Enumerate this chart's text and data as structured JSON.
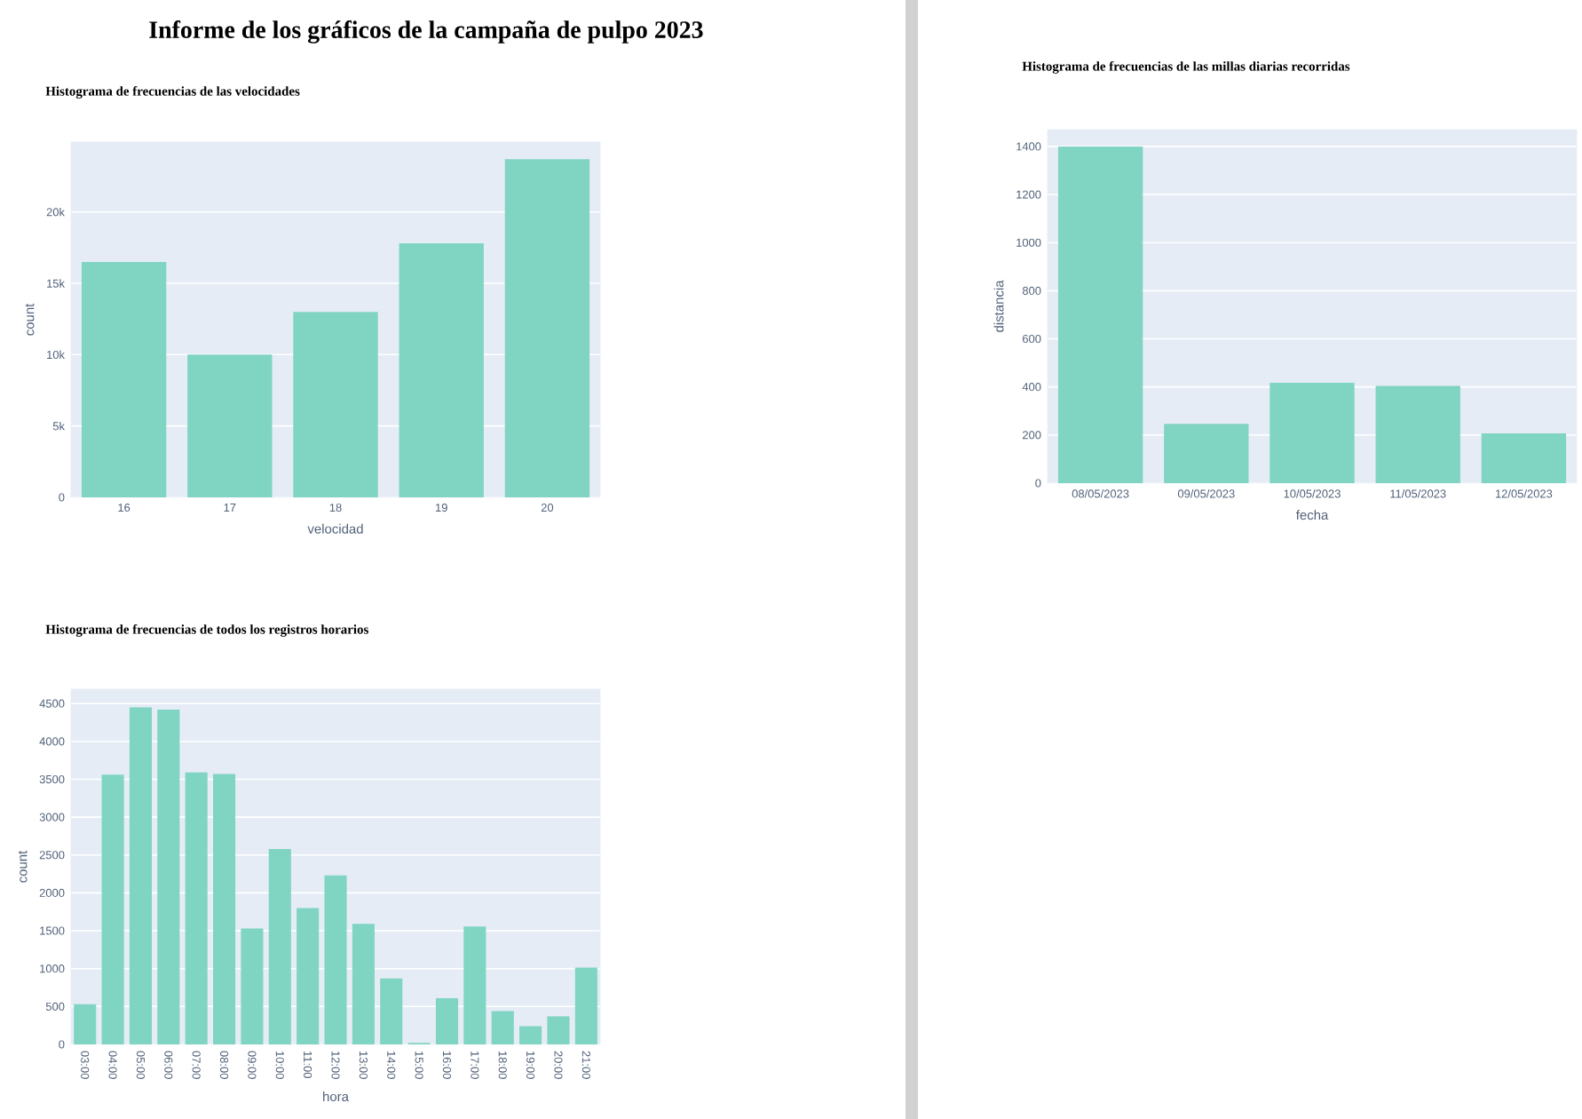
{
  "chart_data": [
    {
      "type": "bar",
      "title": "Informe de los gráficos de la campaña de pulpo 2023",
      "subtitle": "Histograma de frecuencias de las velocidades",
      "xlabel": "velocidad",
      "ylabel": "count",
      "categories": [
        "16",
        "17",
        "18",
        "19",
        "20"
      ],
      "values": [
        16500,
        10000,
        13000,
        17800,
        23700
      ],
      "color": "#80d4c2",
      "ylim": [
        0,
        24900
      ],
      "yticks": [
        0,
        {
          "value": 5000,
          "label": "5k"
        },
        {
          "value": 10000,
          "label": "10k"
        },
        {
          "value": 15000,
          "label": "15k"
        },
        {
          "value": 20000,
          "label": "20k"
        }
      ],
      "grid": "y"
    },
    {
      "type": "bar",
      "title": "Histograma de frecuencias de las millas diarias recorridas",
      "xlabel": "fecha",
      "ylabel": "distancia",
      "categories": [
        "08/05/2023",
        "09/05/2023",
        "10/05/2023",
        "11/05/2023",
        "12/05/2023"
      ],
      "values": [
        1400,
        246,
        417,
        404,
        207
      ],
      "color": "#80d4c2",
      "ylim": [
        0,
        1470
      ],
      "yticks": [
        0,
        200,
        400,
        600,
        800,
        1000,
        1200,
        1400
      ],
      "grid": "y"
    },
    {
      "type": "bar",
      "title": "Histograma de frecuencias de todos los registros horarios",
      "xlabel": "hora",
      "ylabel": "count",
      "categories": [
        "03:00",
        "04:00",
        "05:00",
        "06:00",
        "07:00",
        "08:00",
        "09:00",
        "10:00",
        "11:00",
        "12:00",
        "13:00",
        "14:00",
        "15:00",
        "16:00",
        "17:00",
        "18:00",
        "19:00",
        "20:00",
        "21:00"
      ],
      "values": [
        530,
        3560,
        4450,
        4420,
        3590,
        3570,
        1530,
        2580,
        1800,
        2230,
        1590,
        870,
        20,
        610,
        1555,
        440,
        240,
        370,
        1015
      ],
      "color": "#80d4c2",
      "ylim": [
        0,
        4690
      ],
      "yticks": [
        0,
        500,
        1000,
        1500,
        2000,
        2500,
        3000,
        3500,
        4000,
        4500
      ],
      "grid": "y"
    }
  ]
}
